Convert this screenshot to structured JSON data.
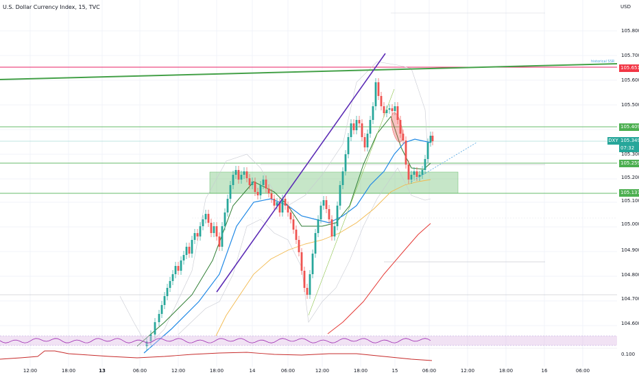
{
  "header": {
    "title": "U.S. Dollar Currency Index, 15, TVC",
    "currency": "USD"
  },
  "symbol": "DXY",
  "price_axis": [
    "105.800",
    "105.700",
    "105.600",
    "105.500",
    "105.300",
    "105.200",
    "105.100",
    "105.000",
    "104.900",
    "104.800",
    "104.700",
    "104.600"
  ],
  "time_axis": [
    "12:00",
    "18:00",
    "13",
    "06:00",
    "12:00",
    "18:00",
    "14",
    "06:00",
    "12:00",
    "18:00",
    "15",
    "06:00",
    "12:00",
    "18:00",
    "16",
    "06:00"
  ],
  "badges": {
    "upper_level": "105.651",
    "res_level": "105.409",
    "last_price": "105.349",
    "countdown": "07:32",
    "sup_level": "105.259",
    "low_level": "105.137"
  },
  "line_label": "historical SSR",
  "indicators": {
    "lower_pane_value": "0.100"
  },
  "colors": {
    "up": "#26a69a",
    "down": "#ef5350",
    "trend_green": "#43a047",
    "purple": "#5b2bb5",
    "zone": "#81c784",
    "ma_blue": "#1e88e5",
    "ma_orange": "#f2b84b",
    "ma_green": "#2e7d32",
    "ma_red": "#e53935",
    "rsi": "#9c27b0",
    "badge_red": "#f23645",
    "badge_green": "#4caf50"
  },
  "chart_data": {
    "type": "candlestick",
    "symbol": "DXY",
    "interval": "15",
    "price_range": [
      104.52,
      105.86
    ],
    "levels": [
      105.651,
      105.409,
      105.259,
      105.137
    ],
    "last_price": 105.349
  }
}
